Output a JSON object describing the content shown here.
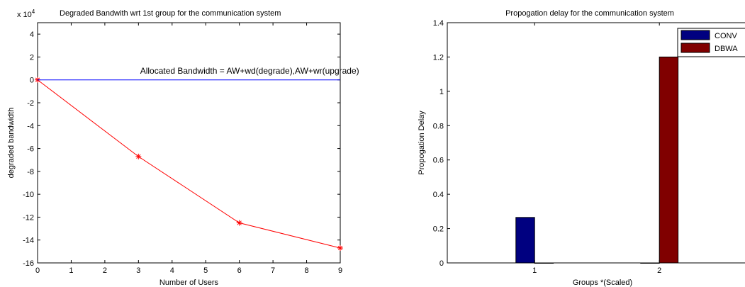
{
  "chart_data": [
    {
      "type": "line",
      "title": "Degraded Bandwith wrt 1st group for the communication system",
      "xlabel": "Number of Users",
      "ylabel": "degraded bandwidth",
      "exponent": "x 10",
      "exponent_power": "4",
      "xlim": [
        0,
        9
      ],
      "ylim": [
        -16,
        5
      ],
      "xticks": [
        0,
        1,
        2,
        3,
        4,
        5,
        6,
        7,
        8,
        9
      ],
      "yticks": [
        4,
        2,
        0,
        -2,
        -4,
        -6,
        -8,
        -10,
        -12,
        -14,
        -16
      ],
      "grid": false,
      "series": [
        {
          "role": "degraded",
          "color": "#ff0000",
          "marker": "*",
          "x": [
            0,
            3,
            6,
            9
          ],
          "y": [
            0,
            -6.7,
            -12.5,
            -14.7
          ]
        },
        {
          "role": "allocated",
          "color": "#0000ff",
          "marker": "none",
          "x": [
            0,
            9
          ],
          "y": [
            0,
            0
          ]
        }
      ],
      "annotations": [
        {
          "text": "Allocated Bandwidth = AW+wd(degrade),AW+wr(upgrade)",
          "x": 3.05,
          "y": 0.3
        }
      ]
    },
    {
      "type": "bar",
      "title": "Propogation delay for the communication system",
      "xlabel": "Groups *(Scaled)",
      "ylabel": "Propogation Delay",
      "categories": [
        "1",
        "2"
      ],
      "ylim": [
        0,
        1.4
      ],
      "yticks": [
        0,
        0.2,
        0.4,
        0.6,
        0.8,
        1,
        1.2,
        1.4
      ],
      "grid": false,
      "legend_position": "top-right",
      "series": [
        {
          "name": "CONV",
          "color": "#000080",
          "values": [
            0.265,
            0
          ]
        },
        {
          "name": "DBWA",
          "color": "#800000",
          "values": [
            0,
            1.2
          ]
        }
      ]
    }
  ]
}
